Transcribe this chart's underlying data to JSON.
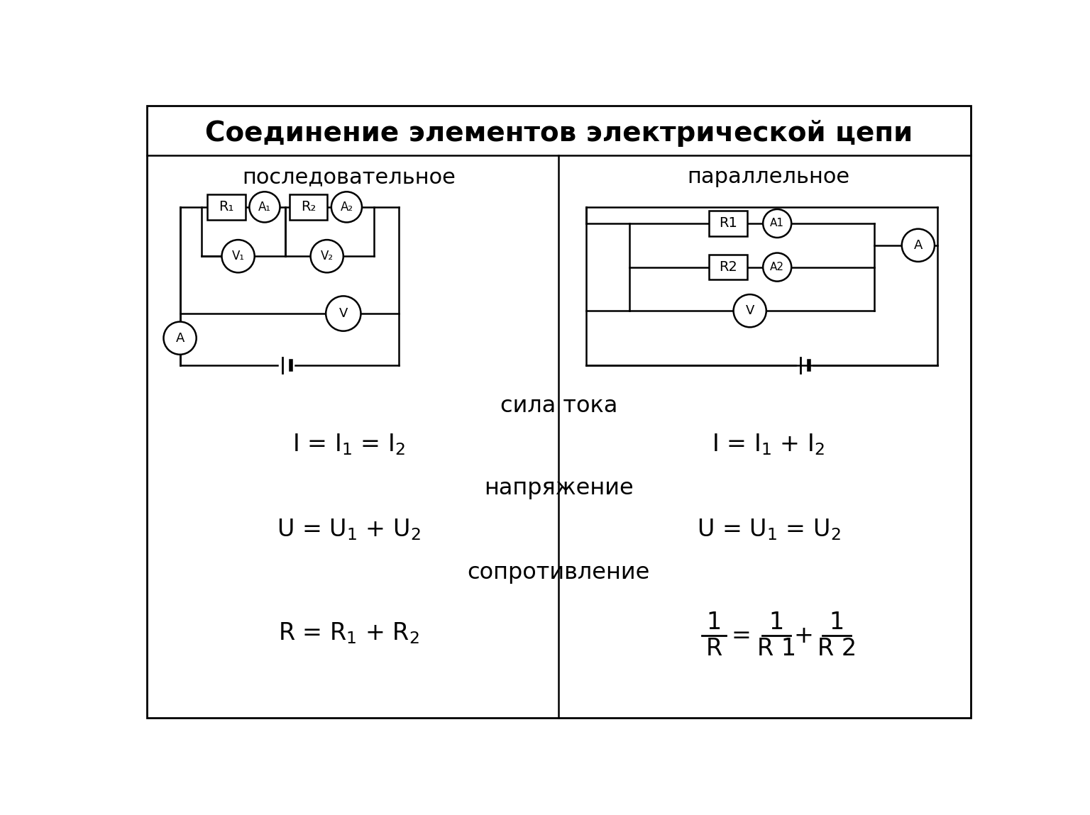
{
  "title": "Соединение элементов электрической цепи",
  "left_label": "последовательное",
  "right_label": "параллельное",
  "background_color": "#ffffff",
  "title_fontsize": 28,
  "label_fontsize": 22,
  "formula_fontsize": 24,
  "category_label_fontsize": 21,
  "current_label": "сила тока",
  "voltage_label": "напряжение",
  "resistance_label": "сопротивление"
}
